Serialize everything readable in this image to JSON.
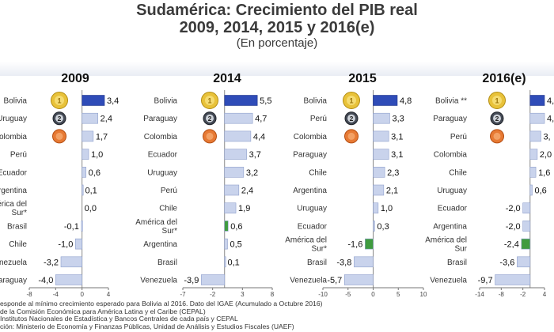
{
  "header": {
    "title": "Sudamérica: Crecimiento del PIB real",
    "subtitle": "2009, 2014, 2015 y 2016(e)",
    "unit": "(En porcentaje)"
  },
  "colors": {
    "first": "#2f4cb8",
    "default": "#c9d3ec",
    "positive": "#3f9b3f",
    "axis": "#777777",
    "text": "#333333"
  },
  "chart_data": [
    {
      "type": "bar",
      "title": "2009",
      "categories": [
        "Bolivia",
        "Uruguay",
        "Colombia",
        "Perú",
        "Ecuador",
        "Argentina",
        "América del Sur*",
        "Brasil",
        "Chile",
        "Venezuela",
        "Paraguay"
      ],
      "values": [
        3.4,
        2.4,
        1.7,
        1.0,
        0.6,
        0.1,
        0.0,
        -0.1,
        -1.0,
        -3.2,
        -4.0
      ],
      "value_labels": [
        "3,4",
        "2,4",
        "1,7",
        "1,0",
        "0,6",
        "0,1",
        "0,0",
        "-0,1",
        "-1,0",
        "-3,2",
        "-4,0"
      ],
      "medals": [
        "gold",
        "2",
        "bronze"
      ],
      "xlim": [
        -8,
        4
      ],
      "xticks": [
        -8,
        -4,
        0,
        4
      ],
      "xtick_labels": [
        "-8",
        "-4",
        "0",
        "4"
      ]
    },
    {
      "type": "bar",
      "title": "2014",
      "categories": [
        "Bolivia",
        "Paraguay",
        "Colombia",
        "Ecuador",
        "Uruguay",
        "Perú",
        "Chile",
        "América del Sur*",
        "Argentina",
        "Brasil",
        "Venezuela"
      ],
      "values": [
        5.5,
        4.7,
        4.4,
        3.7,
        3.2,
        2.4,
        1.9,
        0.6,
        0.5,
        0.1,
        -3.9
      ],
      "value_labels": [
        "5,5",
        "4,7",
        "4,4",
        "3,7",
        "3,2",
        "2,4",
        "1,9",
        "0,6",
        "0,5",
        "0,1",
        "-3,9"
      ],
      "medals": [
        "gold",
        "2",
        "bronze"
      ],
      "xlim": [
        -7,
        8
      ],
      "xticks": [
        -7,
        -2,
        3,
        8
      ],
      "xtick_labels": [
        "-7",
        "-2",
        "3",
        "8"
      ]
    },
    {
      "type": "bar",
      "title": "2015",
      "categories": [
        "Bolivia",
        "Perú",
        "Colombia",
        "Paraguay",
        "Chile",
        "Argentina",
        "Uruguay",
        "Ecuador",
        "América del Sur*",
        "Brasil",
        "Venezuela"
      ],
      "values": [
        4.8,
        3.3,
        3.1,
        3.1,
        2.3,
        2.1,
        1.0,
        0.3,
        -1.6,
        -3.8,
        -5.7
      ],
      "value_labels": [
        "4,8",
        "3,3",
        "3,1",
        "3,1",
        "2,3",
        "2,1",
        "1,0",
        "0,3",
        "-1,6",
        "-3,8",
        "-5,7"
      ],
      "medals": [
        "gold",
        "2",
        "bronze"
      ],
      "xlim": [
        -10,
        10
      ],
      "xticks": [
        -10,
        -5,
        0,
        5,
        10
      ],
      "xtick_labels": [
        "-10",
        "-5",
        "0",
        "5",
        "10"
      ]
    },
    {
      "type": "bar",
      "title": "2016(e)",
      "categories": [
        "Bolivia **",
        "Paraguay",
        "Perú",
        "Colombia",
        "Chile",
        "Uruguay",
        "Ecuador",
        "Argentina",
        "América del Sur",
        "Brasil",
        "Venezuela"
      ],
      "values": [
        4.0,
        4.0,
        3.0,
        2.0,
        1.6,
        0.6,
        -2.0,
        -2.0,
        -2.4,
        -3.6,
        -9.7
      ],
      "value_labels": [
        "4,",
        "4,",
        "3,",
        "2,0",
        "1,6",
        "0,6",
        "-2,0",
        "-2,0",
        "-2,4",
        "-3,6",
        "-9,7"
      ],
      "medals": [
        "gold",
        "2",
        "bronze"
      ],
      "xlim": [
        -14,
        4
      ],
      "xticks": [
        -14,
        -8,
        -2,
        4
      ],
      "xtick_labels": [
        "-14",
        "-8",
        "-2",
        "4"
      ]
    }
  ],
  "footnotes": [
    "esponde al mínimo crecimiento esperado para Bolivia al 2016. Dato del IGAE (Acumulado a Octubre 2016)",
    "de la Comisión Económica para América Latina y el Caribe (CEPAL)",
    "Institutos Nacionales de Estadística y Bancos Centrales de cada país y CEPAL",
    "ción: Ministerio de Economía y Finanzas Públicas, Unidad de Análisis y Estudios Fiscales (UAEF)"
  ]
}
